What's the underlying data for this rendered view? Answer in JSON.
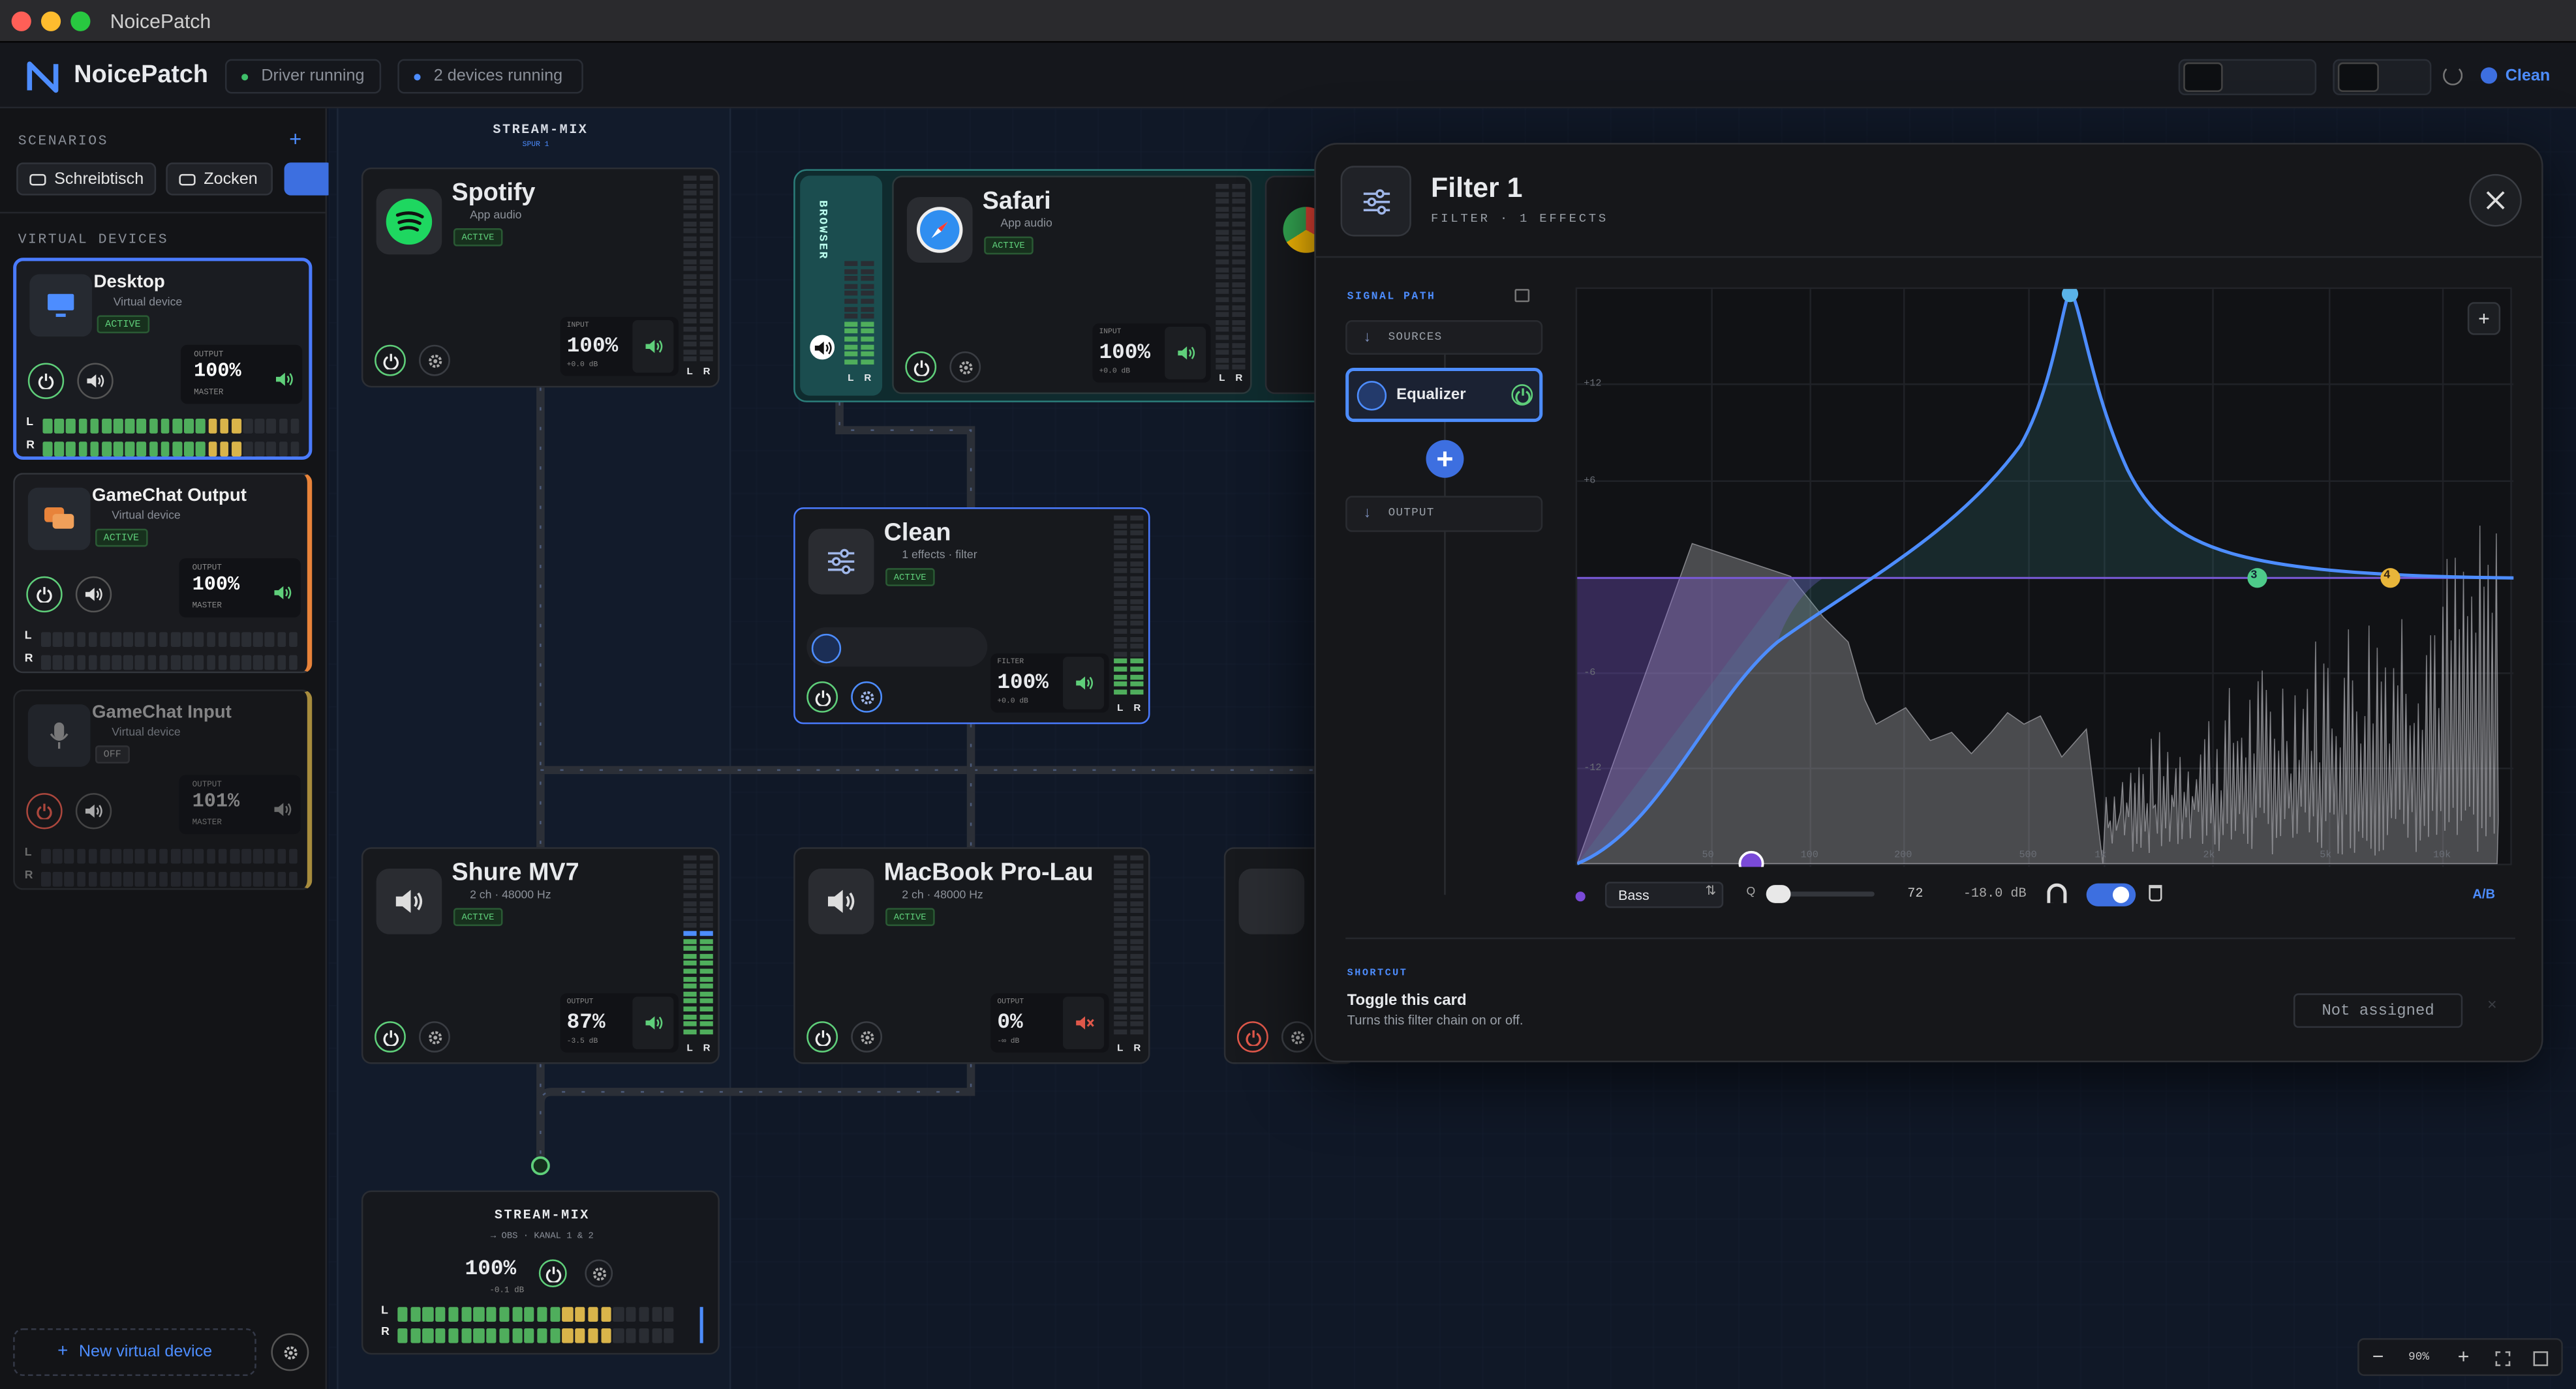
{
  "window": {
    "title": "NoicePatch"
  },
  "header": {
    "app_name": "NoicePatch",
    "status": [
      "Driver running",
      "2 devices running"
    ],
    "profile": "Clean"
  },
  "sidebar": {
    "scenarios_label": "SCENARIOS",
    "scenarios": [
      "Schreibtisch",
      "Zocken"
    ],
    "virtual_devices_label": "VIRTUAL DEVICES",
    "devices": [
      {
        "name": "Desktop",
        "kind": "Virtual device",
        "status": "ACTIVE",
        "level_label": "OUTPUT",
        "level": "100%",
        "sub": "MASTER"
      },
      {
        "name": "GameChat Output",
        "kind": "Virtual device",
        "status": "ACTIVE",
        "level_label": "OUTPUT",
        "level": "100%",
        "sub": "MASTER"
      },
      {
        "name": "GameChat Input",
        "kind": "Virtual device",
        "status": "OFF",
        "level_label": "OUTPUT",
        "level": "101%",
        "sub": "MASTER"
      }
    ],
    "new_device": "New virtual device"
  },
  "canvas": {
    "group_label": "STREAM-MIX",
    "group_sub": "SPUR 1",
    "browser_label": "BROWSER",
    "meter_channels": [
      "L",
      "R"
    ],
    "nodes": [
      {
        "name": "Spotify",
        "kind": "App audio",
        "status": "ACTIVE",
        "level_label": "INPUT",
        "level": "100%",
        "db": "+0.0 dB"
      },
      {
        "name": "Safari",
        "kind": "App audio",
        "status": "ACTIVE",
        "level_label": "INPUT",
        "level": "100%",
        "db": "+0.0 dB"
      },
      {
        "name": "Clean",
        "kind": "1 effects · filter",
        "status": "ACTIVE",
        "level_label": "FILTER",
        "level": "100%",
        "db": "+0.0 dB"
      },
      {
        "name": "Shure MV7",
        "kind": "2 ch · 48000 Hz",
        "status": "ACTIVE",
        "level_label": "OUTPUT",
        "level": "87%",
        "db": "-3.5 dB"
      },
      {
        "name": "MacBook Pro-Lau",
        "kind": "2 ch · 48000 Hz",
        "status": "ACTIVE",
        "level_label": "OUTPUT",
        "level": "0%",
        "db": "-∞ dB"
      }
    ],
    "output": {
      "title": "STREAM-MIX",
      "sub": "→ OBS · KANAL 1 & 2",
      "level": "100%",
      "db": "-0.1 dB"
    },
    "zoom": "90%"
  },
  "panel": {
    "title": "Filter 1",
    "subtitle": "FILTER · 1 EFFECTS",
    "signal_path_label": "SIGNAL PATH",
    "chain": [
      "SOURCES",
      "Equalizer",
      "OUTPUT"
    ],
    "db_labels": [
      "+12",
      "+6",
      "-6",
      "-12"
    ],
    "freq_labels": [
      "50",
      "100",
      "200",
      "500",
      "1k",
      "2k",
      "5k",
      "10k"
    ],
    "band_markers": [
      "3",
      "4"
    ],
    "band": {
      "type": "Bass",
      "q_label": "Q",
      "q": "72",
      "gain": "-18.0 dB",
      "ab": "A/B"
    },
    "shortcut": {
      "label": "SHORTCUT",
      "title": "Toggle this card",
      "description": "Turns this filter chain on or off.",
      "button": "Not assigned"
    }
  }
}
